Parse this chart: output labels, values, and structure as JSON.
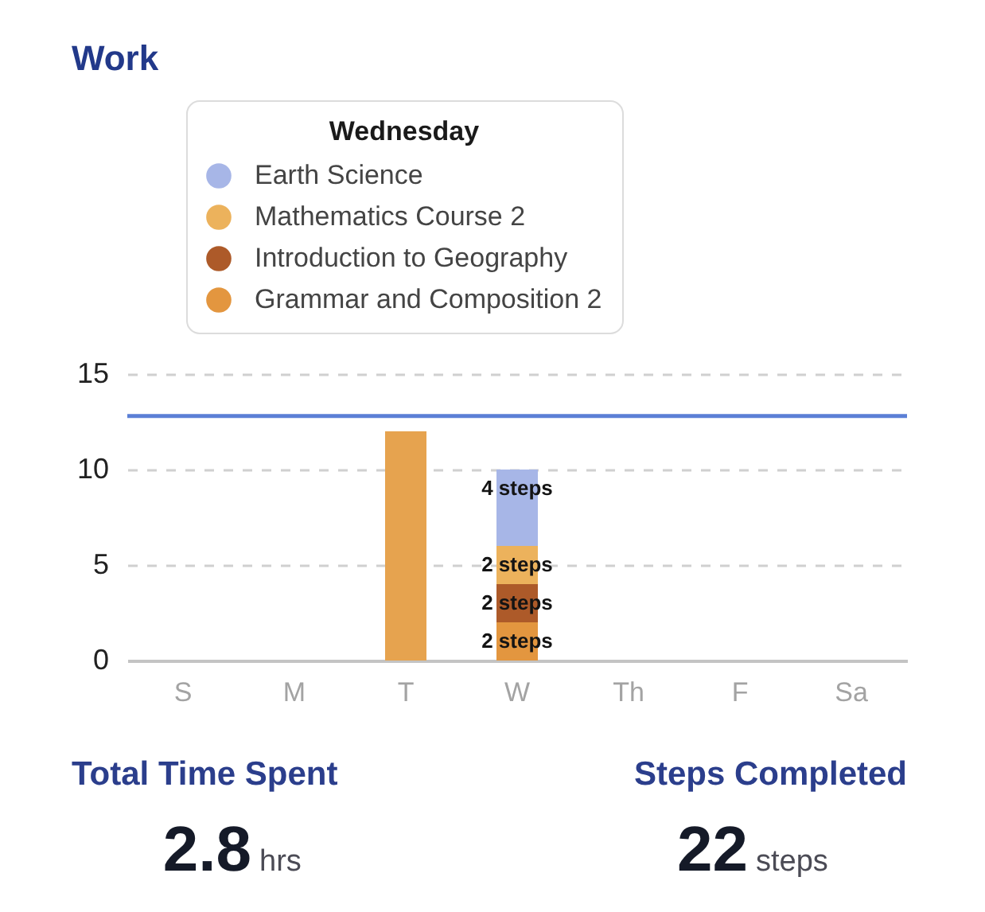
{
  "chart_data": {
    "type": "bar",
    "title": "Work",
    "legend_title": "Wednesday",
    "categories": [
      "S",
      "M",
      "T",
      "W",
      "Th",
      "F",
      "Sa"
    ],
    "series": [
      {
        "name": "Grammar and Composition 2",
        "color": "#e3963f",
        "values": [
          0,
          0,
          0,
          2,
          0,
          0,
          0
        ],
        "value_labels": [
          null,
          null,
          null,
          "2 steps",
          null,
          null,
          null
        ]
      },
      {
        "name": "Introduction to Geography",
        "color": "#ad5a29",
        "values": [
          0,
          0,
          0,
          2,
          0,
          0,
          0
        ],
        "value_labels": [
          null,
          null,
          null,
          "2 steps",
          null,
          null,
          null
        ]
      },
      {
        "name": "Mathematics Course 2",
        "color": "#ecb25c",
        "values": [
          0,
          0,
          0,
          2,
          0,
          0,
          0
        ],
        "value_labels": [
          null,
          null,
          null,
          "2 steps",
          null,
          null,
          null
        ]
      },
      {
        "name": "Earth Science",
        "color": "#a7b6e7",
        "values": [
          0,
          0,
          0,
          4,
          0,
          0,
          0
        ],
        "value_labels": [
          null,
          null,
          null,
          "4 steps",
          null,
          null,
          null
        ]
      },
      {
        "color": "#e6a34f",
        "values": [
          0,
          0,
          12,
          0,
          0,
          0,
          0
        ]
      }
    ],
    "stacked": true,
    "ylim": [
      0,
      15
    ],
    "yticks": [
      0,
      5,
      10,
      15
    ],
    "grid": "y",
    "legend": "top",
    "ref_lines": [
      {
        "axis": "y",
        "value": 12.8,
        "color": "#5b7fd6"
      }
    ],
    "annotations": [
      "Total Time Spent",
      "2.8",
      "hrs",
      "Steps Completed",
      "22",
      "steps"
    ]
  }
}
